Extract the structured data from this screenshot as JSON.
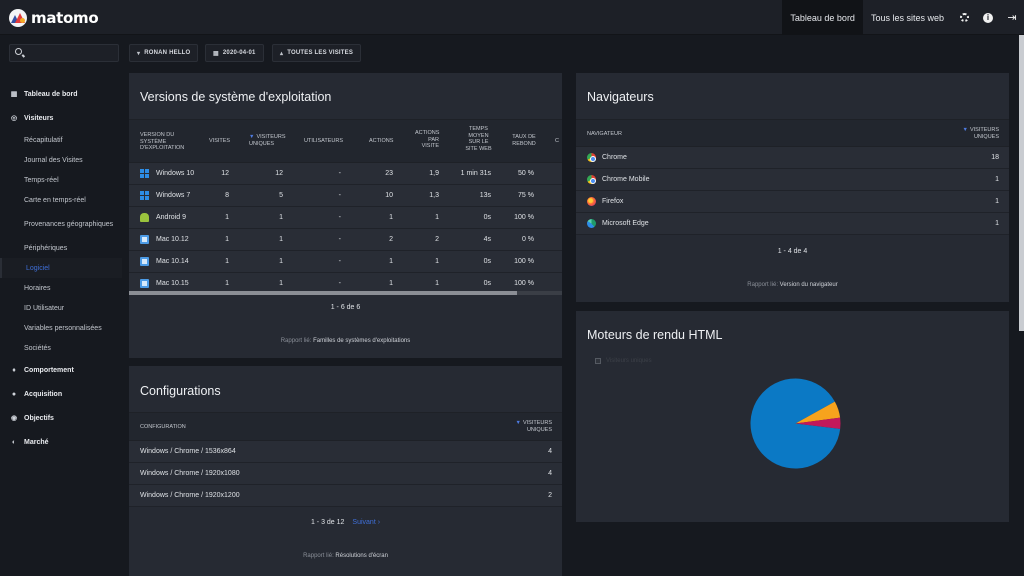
{
  "app": {
    "logo_text": "matomo"
  },
  "topnav": {
    "dashboard": "Tableau de bord",
    "all_sites": "Tous les sites web",
    "info_glyph": "i",
    "logout_glyph": "⇥"
  },
  "subheader": {
    "search_value": "",
    "site_chip": "RONAN HELLO",
    "date_chip": "2020-04-01",
    "segment_chip": "TOUTES LES VISITES"
  },
  "sidebar": {
    "dashboard": "Tableau de bord",
    "visitors": "Visiteurs",
    "visitor_items": [
      "Récapitulatif",
      "Journal des Visites",
      "Temps-réel",
      "Carte en temps-réel",
      "Provenances géographiques",
      "Périphériques",
      "Logiciel",
      "Horaires",
      "ID Utilisateur",
      "Variables personnalisées",
      "Sociétés"
    ],
    "behaviour": "Comportement",
    "acquisition": "Acquisition",
    "goals": "Objectifs",
    "market": "Marché"
  },
  "os_widget": {
    "title": "Versions de système d'exploitation",
    "headers": {
      "os": "VERSION DU SYSTÈME D'EXPLOITATION",
      "visits": "VISITES",
      "unique": "VISITEURS UNIQUES",
      "users": "UTILISATEURS",
      "actions": "ACTIONS",
      "apv": "ACTIONS PAR VISITE",
      "avg_time": "TEMPS MOYEN SUR LE SITE WEB",
      "bounce": "TAUX DE REBOND",
      "extra": "C"
    },
    "rows": [
      {
        "icon": "windows-icon",
        "name": "Windows 10",
        "visits": "12",
        "unique": "12",
        "users": "-",
        "actions": "23",
        "apv": "1,9",
        "avg_time": "1 min 31s",
        "bounce": "50 %"
      },
      {
        "icon": "windows-icon",
        "name": "Windows 7",
        "visits": "8",
        "unique": "5",
        "users": "-",
        "actions": "10",
        "apv": "1,3",
        "avg_time": "13s",
        "bounce": "75 %"
      },
      {
        "icon": "android-icon",
        "name": "Android 9",
        "visits": "1",
        "unique": "1",
        "users": "-",
        "actions": "1",
        "apv": "1",
        "avg_time": "0s",
        "bounce": "100 %"
      },
      {
        "icon": "mac-icon",
        "name": "Mac 10.12",
        "visits": "1",
        "unique": "1",
        "users": "-",
        "actions": "2",
        "apv": "2",
        "avg_time": "4s",
        "bounce": "0 %"
      },
      {
        "icon": "mac-icon",
        "name": "Mac 10.14",
        "visits": "1",
        "unique": "1",
        "users": "-",
        "actions": "1",
        "apv": "1",
        "avg_time": "0s",
        "bounce": "100 %"
      },
      {
        "icon": "mac-icon",
        "name": "Mac 10.15",
        "visits": "1",
        "unique": "1",
        "users": "-",
        "actions": "1",
        "apv": "1",
        "avg_time": "0s",
        "bounce": "100 %"
      }
    ],
    "pager": "1 - 6 de 6",
    "related_label": "Rapport lié:",
    "related_link": "Familles de systèmes d'exploitations"
  },
  "config_widget": {
    "title": "Configurations",
    "headers": {
      "config": "CONFIGURATION",
      "unique": "VISITEURS UNIQUES"
    },
    "rows": [
      {
        "name": "Windows / Chrome / 1536x864",
        "unique": "4"
      },
      {
        "name": "Windows / Chrome / 1920x1080",
        "unique": "4"
      },
      {
        "name": "Windows / Chrome / 1920x1200",
        "unique": "2"
      }
    ],
    "pager": "1 - 3 de 12",
    "next": "Suivant ›",
    "related_label": "Rapport lié:",
    "related_link": "Résolutions d'écran"
  },
  "browser_widget": {
    "title": "Navigateurs",
    "headers": {
      "browser": "NAVIGATEUR",
      "unique": "VISITEURS UNIQUES"
    },
    "rows": [
      {
        "icon": "chrome-icon",
        "name": "Chrome",
        "unique": "18"
      },
      {
        "icon": "chrome-icon",
        "name": "Chrome Mobile",
        "unique": "1"
      },
      {
        "icon": "firefox-icon",
        "name": "Firefox",
        "unique": "1"
      },
      {
        "icon": "edge-icon",
        "name": "Microsoft Edge",
        "unique": "1"
      }
    ],
    "pager": "1 - 4 de 4",
    "related_label": "Rapport lié:",
    "related_link": "Version du navigateur"
  },
  "engine_widget": {
    "title": "Moteurs de rendu HTML",
    "legend": "Visiteurs uniques"
  },
  "chart_data": {
    "type": "pie",
    "categories": [
      "",
      "",
      ""
    ],
    "values": [
      90,
      6,
      4
    ],
    "colors": [
      "#0b79c5",
      "#f7a31d",
      "#c2185b"
    ],
    "legend": "top-left"
  },
  "colors": {
    "accent": "#3f6fd8",
    "panel": "#262a33",
    "background": "#16191f"
  }
}
